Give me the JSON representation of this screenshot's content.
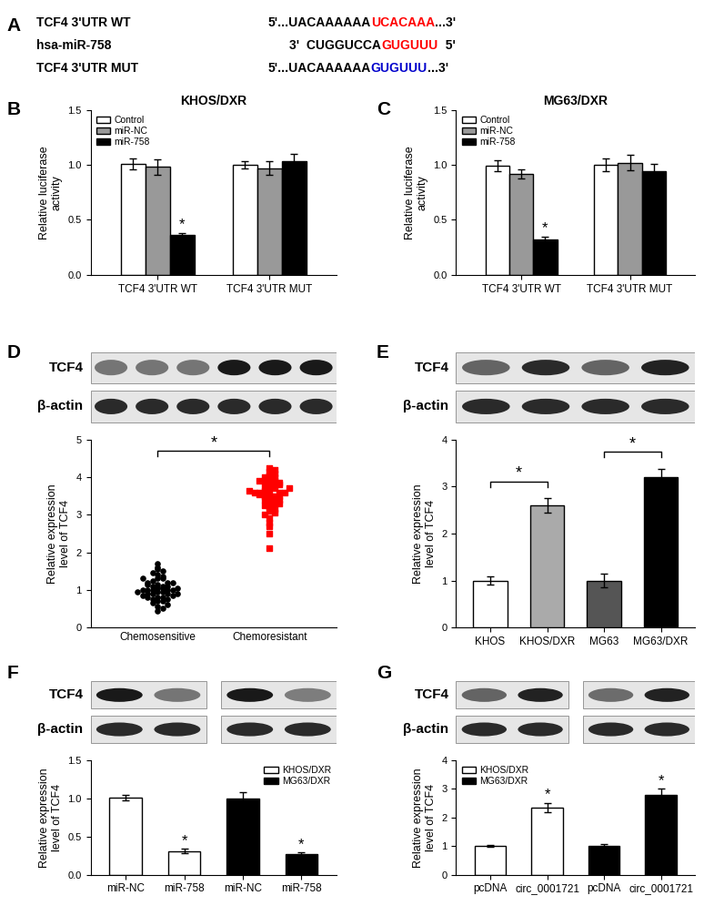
{
  "panel_a": {
    "label": "A",
    "rows": [
      {
        "name": "TCF4 3'UTR WT",
        "segments": [
          {
            "text": "5'...UACAAAAAA",
            "color": "#000000"
          },
          {
            "text": "UCACAAA",
            "color": "#ff0000"
          },
          {
            "text": "...3'",
            "color": "#000000"
          }
        ]
      },
      {
        "name": "hsa-miR-758",
        "segments": [
          {
            "text": "3'  CUGGUCCA",
            "color": "#000000"
          },
          {
            "text": "GUGUUU",
            "color": "#ff0000"
          },
          {
            "text": "  5'",
            "color": "#000000"
          }
        ]
      },
      {
        "name": "TCF4 3'UTR MUT",
        "segments": [
          {
            "text": "5'...UACAAAAAA",
            "color": "#000000"
          },
          {
            "text": "GUGUUU",
            "color": "#0000cc"
          },
          {
            "text": "...3'",
            "color": "#000000"
          }
        ]
      }
    ]
  },
  "chart_data": [
    {
      "label": "B",
      "type": "bar",
      "title": "KHOS/DXR",
      "y_label": "Relative luciferase\nactivity",
      "categories": [
        "TCF4 3'UTR WT",
        "TCF4 3'UTR MUT"
      ],
      "series": [
        {
          "name": "Control",
          "color": "#ffffff",
          "values": [
            1.01,
            1.0
          ],
          "errors": [
            0.05,
            0.03
          ]
        },
        {
          "name": "miR-NC",
          "color": "#999999",
          "values": [
            0.98,
            0.97
          ],
          "errors": [
            0.07,
            0.06
          ]
        },
        {
          "name": "miR-758",
          "color": "#000000",
          "values": [
            0.36,
            1.03
          ],
          "errors": [
            0.02,
            0.07
          ],
          "significance": [
            "*",
            null
          ]
        }
      ],
      "ylim": [
        0,
        1.5
      ],
      "yticks": [
        {
          "value": 0,
          "label": "0.0"
        },
        {
          "value": 0.5,
          "label": "0.5"
        },
        {
          "value": 1.0,
          "label": "1.0"
        },
        {
          "value": 1.5,
          "label": "1.5"
        }
      ],
      "legend": "upper left"
    },
    {
      "label": "C",
      "type": "bar",
      "title": "MG63/DXR",
      "y_label": "Relative luciferase\nactivity",
      "categories": [
        "TCF4 3'UTR WT",
        "TCF4 3'UTR MUT"
      ],
      "series": [
        {
          "name": "Control",
          "color": "#ffffff",
          "values": [
            0.99,
            1.0
          ],
          "errors": [
            0.05,
            0.06
          ]
        },
        {
          "name": "miR-NC",
          "color": "#999999",
          "values": [
            0.92,
            1.02
          ],
          "errors": [
            0.04,
            0.07
          ]
        },
        {
          "name": "miR-758",
          "color": "#000000",
          "values": [
            0.32,
            0.94
          ],
          "errors": [
            0.03,
            0.07
          ],
          "significance": [
            "*",
            null
          ]
        }
      ],
      "ylim": [
        0,
        1.5
      ],
      "yticks": [
        {
          "value": 0,
          "label": "0.0"
        },
        {
          "value": 0.5,
          "label": "0.5"
        },
        {
          "value": 1.0,
          "label": "1.0"
        },
        {
          "value": 1.5,
          "label": "1.5"
        }
      ],
      "legend": "upper left"
    },
    {
      "label": "D",
      "type": "strip",
      "blot_labels": [
        "TCF4",
        "β-actin"
      ],
      "y_label": "Relative expression\nlevel of TCF4",
      "categories": [
        "Chemosensitive",
        "Chemoresistant"
      ],
      "colors": [
        "#000000",
        "#ff0000"
      ],
      "values": [
        [
          1.7,
          1.6,
          1.55,
          1.5,
          1.45,
          1.4,
          1.35,
          1.3,
          1.3,
          1.25,
          1.2,
          1.2,
          1.15,
          1.1,
          1.1,
          1.05,
          1.05,
          1.0,
          1.0,
          1.0,
          1.0,
          0.95,
          0.95,
          0.9,
          0.9,
          0.9,
          0.85,
          0.85,
          0.8,
          0.8,
          0.75,
          0.75,
          0.7,
          0.7,
          0.65,
          0.6,
          0.55,
          0.5,
          0.45,
          1.0,
          1.1,
          0.9,
          1.2,
          0.8,
          1.3,
          1.15,
          0.95,
          1.05
        ],
        [
          4.25,
          4.2,
          4.15,
          4.1,
          4.05,
          4.0,
          4.0,
          3.95,
          3.9,
          3.9,
          3.85,
          3.8,
          3.8,
          3.75,
          3.7,
          3.7,
          3.65,
          3.6,
          3.6,
          3.6,
          3.55,
          3.5,
          3.5,
          3.45,
          3.4,
          3.4,
          3.35,
          3.3,
          3.25,
          3.2,
          3.15,
          3.1,
          3.05,
          3.0,
          2.9,
          2.8,
          2.7,
          2.5,
          2.1,
          3.6,
          3.7,
          3.5,
          3.8,
          3.4,
          3.9,
          3.3,
          3.65,
          3.55
        ]
      ],
      "brackets": [
        {
          "text": "*",
          "from": "Chemosensitive",
          "to": "Chemoresistant"
        }
      ],
      "ylim": [
        0,
        5
      ],
      "yticks": [
        0,
        1,
        2,
        3,
        4,
        5
      ]
    },
    {
      "label": "E",
      "type": "bar",
      "blot_labels": [
        "TCF4",
        "β-actin"
      ],
      "y_label": "Relative expression\nlevel of TCF4",
      "categories": [
        "KHOS",
        "KHOS/DXR",
        "MG63",
        "MG63/DXR"
      ],
      "values": [
        1.0,
        2.6,
        1.0,
        3.2
      ],
      "errors": [
        0.08,
        0.15,
        0.15,
        0.18
      ],
      "colors": [
        "#ffffff",
        "#aaaaaa",
        "#555555",
        "#000000"
      ],
      "brackets": [
        {
          "text": "*",
          "from": "KHOS",
          "to": "KHOS/DXR"
        },
        {
          "text": "*",
          "from": "MG63",
          "to": "MG63/DXR"
        }
      ],
      "ylim": [
        0,
        4
      ],
      "yticks": [
        0,
        1,
        2,
        3,
        4
      ]
    },
    {
      "label": "F",
      "type": "bar",
      "blot_labels": [
        "TCF4",
        "β-actin"
      ],
      "y_label": "Relative expression\nlevel of TCF4",
      "categories": [
        "miR-NC",
        "miR-758",
        "miR-NC",
        "miR-758"
      ],
      "series": [
        {
          "name": "KHOS/DXR",
          "color": "#ffffff",
          "values": [
            1.01,
            0.31,
            null,
            null
          ],
          "errors": [
            0.04,
            0.03,
            null,
            null
          ],
          "significance": [
            null,
            "*",
            null,
            null
          ]
        },
        {
          "name": "MG63/DXR",
          "color": "#000000",
          "values": [
            null,
            null,
            1.0,
            0.27
          ],
          "errors": [
            null,
            null,
            0.08,
            0.02
          ],
          "significance": [
            null,
            null,
            null,
            "*"
          ]
        }
      ],
      "ylim": [
        0,
        1.5
      ],
      "yticks": [
        {
          "value": 0,
          "label": "0.0"
        },
        {
          "value": 0.5,
          "label": "0.5"
        },
        {
          "value": 1.0,
          "label": "1.0"
        },
        {
          "value": 1.5,
          "label": "1.5"
        }
      ],
      "legend": "upper right"
    },
    {
      "label": "G",
      "type": "bar",
      "blot_labels": [
        "TCF4",
        "β-actin"
      ],
      "y_label": "Relative expression\nlevel of TCF4",
      "categories": [
        "pcDNA",
        "circ_0001721",
        "pcDNA",
        "circ_0001721"
      ],
      "series": [
        {
          "name": "KHOS/DXR",
          "color": "#ffffff",
          "values": [
            1.0,
            2.35,
            null,
            null
          ],
          "errors": [
            0.03,
            0.17,
            null,
            null
          ],
          "significance": [
            null,
            "*",
            null,
            null
          ]
        },
        {
          "name": "MG63/DXR",
          "color": "#000000",
          "values": [
            null,
            null,
            1.02,
            2.78
          ],
          "errors": [
            null,
            null,
            0.04,
            0.22
          ],
          "significance": [
            null,
            null,
            null,
            "*"
          ]
        }
      ],
      "ylim": [
        0,
        4
      ],
      "yticks": [
        0,
        1,
        2,
        3,
        4
      ],
      "legend": "upper left"
    }
  ]
}
